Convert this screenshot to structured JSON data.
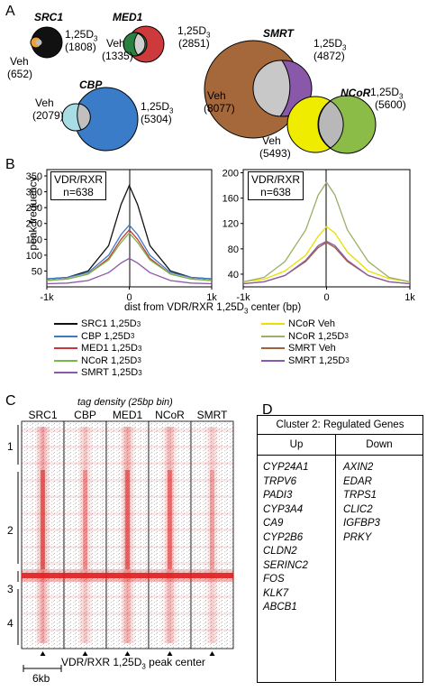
{
  "panels": {
    "a": "A",
    "b": "B",
    "c": "C",
    "d": "D"
  },
  "venn": {
    "src1": {
      "title": "SRC1",
      "veh": "Veh",
      "veh_n": "(652)",
      "d": "1,25D",
      "sub": "3",
      "d_n": "(1808)"
    },
    "med1": {
      "title": "MED1",
      "veh": "Veh",
      "veh_n": "(1335)",
      "d": "1,25D",
      "sub": "3",
      "d_n": "(2851)"
    },
    "smrt": {
      "title": "SMRT",
      "veh": "Veh",
      "veh_n": "(8077)",
      "d": "1,25D",
      "sub": "3",
      "d_n": "(4872)"
    },
    "cbp": {
      "title": "CBP",
      "veh": "Veh",
      "veh_n": "(2079)",
      "d": "1,25D",
      "sub": "3",
      "d_n": "(5304)"
    },
    "ncor": {
      "title": "NCoR",
      "veh": "Veh",
      "veh_n": "(5493)",
      "d": "1,25D",
      "sub": "3",
      "d_n": "(5600)"
    }
  },
  "panel_b": {
    "ylabel": "peak frequency",
    "xlabel": "dist from VDR/RXR 1,25D",
    "xlabel_sub": "3",
    "xlabel_tail": " center (bp)",
    "box_line1": "VDR/RXR",
    "box_line2": "n=638",
    "left_yticks": [
      "350",
      "300",
      "250",
      "200",
      "150",
      "100",
      "50"
    ],
    "right_yticks": [
      "200",
      "160",
      "120",
      "80",
      "40"
    ],
    "xticks": [
      "-1k",
      "0",
      "1k"
    ]
  },
  "chart_data": [
    {
      "type": "line",
      "x": [
        -1000,
        -750,
        -500,
        -250,
        -100,
        0,
        100,
        250,
        500,
        750,
        1000
      ],
      "ylim": [
        0,
        370
      ],
      "series": [
        {
          "name": "SRC1 1,25D3",
          "color": "#111111",
          "values": [
            25,
            30,
            50,
            130,
            260,
            320,
            260,
            130,
            50,
            30,
            25
          ]
        },
        {
          "name": "CBP 1,25D3",
          "color": "#3a7cc4",
          "values": [
            25,
            30,
            45,
            100,
            165,
            195,
            165,
            100,
            45,
            30,
            25
          ]
        },
        {
          "name": "MED1 1,25D3",
          "color": "#c8383a",
          "values": [
            20,
            25,
            40,
            90,
            150,
            180,
            150,
            90,
            40,
            25,
            20
          ]
        },
        {
          "name": "NCoR 1,25D3",
          "color": "#7ab648",
          "values": [
            20,
            25,
            40,
            85,
            140,
            170,
            140,
            85,
            40,
            25,
            20
          ]
        },
        {
          "name": "SMRT 1,25D3",
          "color": "#8a5aa8",
          "values": [
            10,
            12,
            20,
            45,
            75,
            90,
            75,
            45,
            20,
            12,
            10
          ]
        }
      ]
    },
    {
      "type": "line",
      "x": [
        -1000,
        -750,
        -500,
        -250,
        -100,
        0,
        100,
        250,
        500,
        750,
        1000
      ],
      "ylim": [
        20,
        205
      ],
      "series": [
        {
          "name": "NCoR Veh",
          "color": "#e8e000",
          "values": [
            28,
            32,
            45,
            70,
            100,
            115,
            105,
            75,
            45,
            33,
            28
          ]
        },
        {
          "name": "NCoR 1,25D3",
          "color": "#9ab06a",
          "values": [
            28,
            35,
            60,
            110,
            165,
            185,
            165,
            110,
            60,
            35,
            28
          ]
        },
        {
          "name": "SMRT Veh",
          "color": "#a0623a",
          "values": [
            25,
            28,
            38,
            60,
            82,
            90,
            82,
            60,
            38,
            28,
            25
          ]
        },
        {
          "name": "SMRT 1,25D3",
          "color": "#8a5aa8",
          "values": [
            25,
            28,
            38,
            62,
            85,
            92,
            85,
            62,
            38,
            28,
            25
          ]
        }
      ]
    }
  ],
  "legend_left": [
    {
      "name": "SRC1 1,25D",
      "sub": "3",
      "color": "#111111"
    },
    {
      "name": "CBP 1,25D",
      "sub": "3",
      "color": "#3a7cc4"
    },
    {
      "name": "MED1 1,25D",
      "sub": "3",
      "color": "#c8383a"
    },
    {
      "name": "NCoR 1,25D",
      "sub": "3",
      "color": "#7ab648"
    },
    {
      "name": "SMRT 1,25D",
      "sub": "3",
      "color": "#8a5aa8"
    }
  ],
  "legend_right": [
    {
      "name": "NCoR Veh",
      "sub": "",
      "color": "#e8e000"
    },
    {
      "name": "NCoR 1,25D",
      "sub": "3",
      "color": "#9ab06a"
    },
    {
      "name": "SMRT Veh",
      "sub": "",
      "color": "#a0623a"
    },
    {
      "name": "SMRT 1,25D",
      "sub": "3",
      "color": "#8a5aa8"
    }
  ],
  "panel_c": {
    "title": "tag density (25bp bin)",
    "columns": [
      "SRC1",
      "CBP",
      "MED1",
      "NCoR",
      "SMRT"
    ],
    "clusters": [
      "1",
      "2",
      "3",
      "4"
    ],
    "bottom_label": "VDR/RXR 1,25D",
    "bottom_sub": "3",
    "bottom_tail": " peak center",
    "scale_label": "6kb",
    "heat_color": "#e02020"
  },
  "panel_d": {
    "title": "Cluster 2: Regulated Genes",
    "up_header": "Up",
    "down_header": "Down",
    "up": [
      "CYP24A1",
      "TRPV6",
      "PADI3",
      "CYP3A4",
      "CA9",
      "CYP2B6",
      "CLDN2",
      "SERINC2",
      "FOS",
      "KLK7",
      "ABCB1"
    ],
    "down": [
      "AXIN2",
      "EDAR",
      "TRPS1",
      "CLIC2",
      "IGFBP3",
      "PRKY"
    ]
  }
}
